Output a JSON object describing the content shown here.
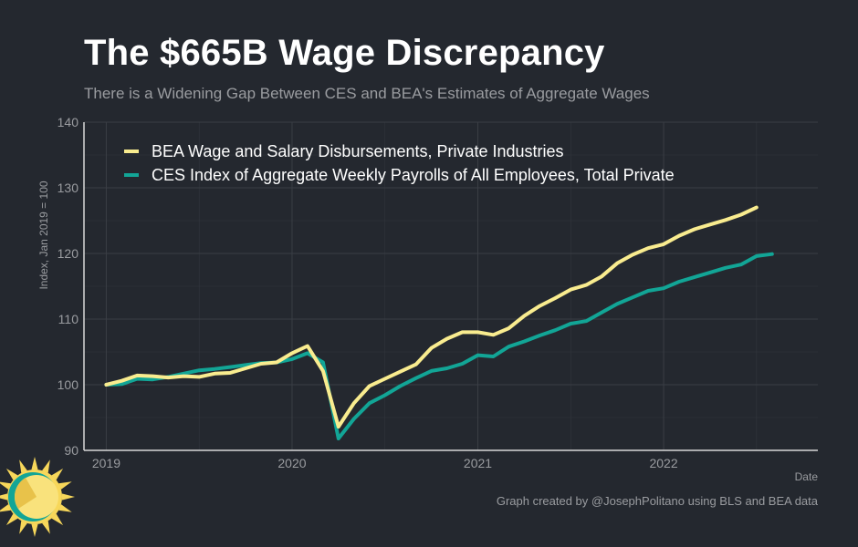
{
  "header": {
    "title": "The $665B Wage Discrepancy",
    "subtitle": "There is a Widening Gap Between CES and BEA's Estimates of Aggregate Wages"
  },
  "footer": {
    "credit": "Graph created by @JosephPolitano using BLS and BEA data"
  },
  "colors": {
    "background": "#24282f",
    "grid": "#3a3e45",
    "axis": "#d8d8d8",
    "bea": "#f9ec8f",
    "ces": "#12a596"
  },
  "chart_data": {
    "type": "line",
    "title": "The $665B Wage Discrepancy",
    "xlabel": "Date",
    "ylabel": "Index, Jan 2019 = 100",
    "xlim": [
      2018.88,
      2022.83
    ],
    "ylim": [
      90,
      140
    ],
    "yticks": [
      90,
      100,
      110,
      120,
      130,
      140
    ],
    "xticks": [
      {
        "value": 2019,
        "label": "2019"
      },
      {
        "value": 2020,
        "label": "2020"
      },
      {
        "value": 2021,
        "label": "2021"
      },
      {
        "value": 2022,
        "label": "2022"
      }
    ],
    "grid": true,
    "legend_position": "top-left",
    "series": [
      {
        "name": "BEA Wage and Salary Disbursements, Private Industries",
        "color": "#f9ec8f",
        "x_start": 2019.0,
        "x_step": 0.08333,
        "values": [
          100.0,
          100.6,
          101.4,
          101.3,
          101.1,
          101.3,
          101.2,
          101.7,
          101.8,
          102.5,
          103.2,
          103.4,
          104.8,
          105.9,
          102.1,
          93.6,
          97.2,
          99.8,
          100.9,
          102.0,
          103.1,
          105.6,
          107.0,
          108.0,
          108.0,
          107.6,
          108.6,
          110.5,
          112.0,
          113.2,
          114.5,
          115.2,
          116.5,
          118.5,
          119.8,
          120.8,
          121.4,
          122.7,
          123.7,
          124.4,
          125.1,
          125.9,
          127.0
        ]
      },
      {
        "name": "CES Index of Aggregate Weekly Payrolls of All Employees, Total Private",
        "color": "#12a596",
        "x_start": 2019.0,
        "x_step": 0.08333,
        "values": [
          100.0,
          100.1,
          100.9,
          100.8,
          101.2,
          101.7,
          102.2,
          102.4,
          102.7,
          103.0,
          103.3,
          103.4,
          103.9,
          104.8,
          103.4,
          91.8,
          94.8,
          97.2,
          98.4,
          99.8,
          101.0,
          102.1,
          102.5,
          103.2,
          104.5,
          104.3,
          105.8,
          106.6,
          107.5,
          108.3,
          109.3,
          109.7,
          111.0,
          112.3,
          113.3,
          114.3,
          114.7,
          115.7,
          116.4,
          117.1,
          117.8,
          118.3,
          119.6,
          119.9
        ]
      }
    ]
  }
}
